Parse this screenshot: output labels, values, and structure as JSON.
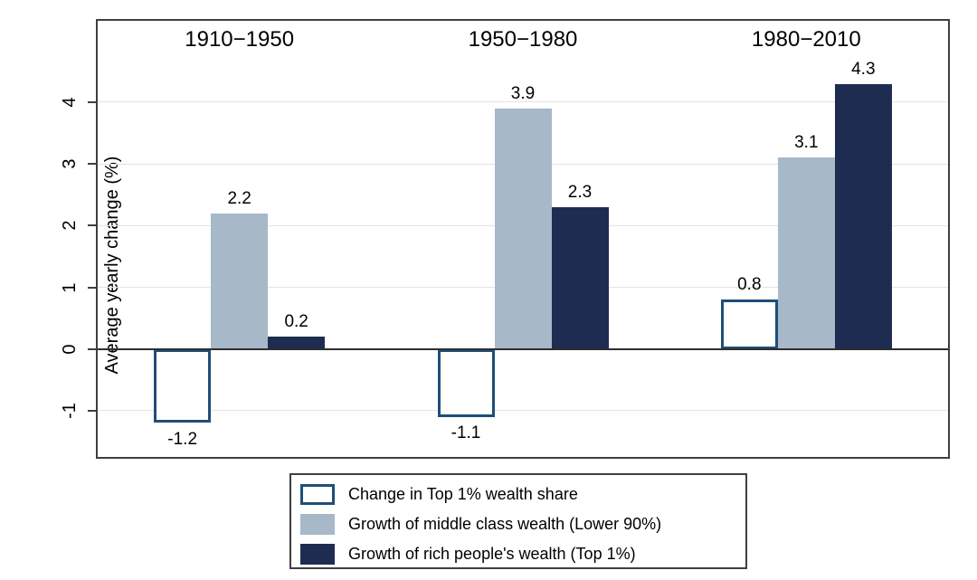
{
  "chart_data": {
    "type": "bar",
    "title": "",
    "ylabel": "Average yearly change (%)",
    "categories": [
      "1910−1950",
      "1950−1980",
      "1980−2010"
    ],
    "series": [
      {
        "name": "Change in Top 1% wealth share",
        "values": [
          -1.2,
          -1.1,
          0.8
        ],
        "fill": "#ffffff",
        "border": "#1f4e79"
      },
      {
        "name": "Growth of middle class wealth (Lower 90%)",
        "values": [
          2.2,
          3.9,
          3.1
        ],
        "fill": "#a7b8c8",
        "border": null
      },
      {
        "name": "Growth of rich people's wealth (Top 1%)",
        "values": [
          0.2,
          2.3,
          4.3
        ],
        "fill": "#1f2c52",
        "border": null
      }
    ],
    "value_labels": [
      [
        "-1.2",
        "2.2",
        "0.2"
      ],
      [
        "-1.1",
        "3.9",
        "2.3"
      ],
      [
        "0.8",
        "3.1",
        "4.3"
      ]
    ],
    "ytick_labels": [
      "-1",
      "0",
      "1",
      "2",
      "3",
      "4"
    ],
    "ytick_values": [
      -1,
      0,
      1,
      2,
      3,
      4
    ],
    "ylim": [
      -1.75,
      5.32
    ],
    "grid": true,
    "legend_position": "bottom-center"
  },
  "colors": {
    "frame": "#3f3f3f",
    "gridline": "#e4e4e4",
    "zero_line": "#2e2e2e",
    "text": "#000000",
    "outline_series_border": "#1f4e79",
    "middle_class_fill": "#a7b8c8",
    "top1_fill": "#1f2c52"
  }
}
